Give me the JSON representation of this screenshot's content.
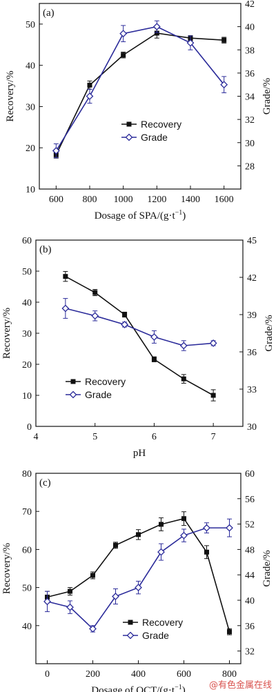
{
  "colors": {
    "recovery": "#111111",
    "grade": "#2b2b9a"
  },
  "watermark": "@有色金属在线",
  "chart_data": [
    {
      "type": "line",
      "panel_label": "(a)",
      "xlabel_main": "Dosage of SPA/(g·t",
      "xlabel_sup": "−1",
      "xlabel_tail": ")",
      "ylabel": "Recovery/%",
      "y2label": "Grade/%",
      "xlim": [
        500,
        1700
      ],
      "ylim": [
        10,
        55
      ],
      "y2lim": [
        26,
        42
      ],
      "xticks": [
        600,
        800,
        1000,
        1200,
        1400,
        1600
      ],
      "yticks": [
        10,
        20,
        30,
        40,
        50
      ],
      "y2ticks": [
        28,
        30,
        32,
        34,
        36,
        38,
        40,
        42
      ],
      "legend_position": "center-right",
      "legend": [
        "Recovery",
        "Grade"
      ],
      "series": [
        {
          "name": "Recovery",
          "axis": "left",
          "marker": "square",
          "x": [
            600,
            800,
            1000,
            1200,
            1400,
            1600
          ],
          "y": [
            18.3,
            35.2,
            42.5,
            47.8,
            46.6,
            46.1
          ],
          "err": [
            0.8,
            1.0,
            0.7,
            1.2,
            0.6,
            0.7
          ]
        },
        {
          "name": "Grade",
          "axis": "right",
          "marker": "diamond",
          "x": [
            600,
            800,
            1000,
            1200,
            1400,
            1600
          ],
          "y": [
            29.3,
            34.0,
            39.4,
            40.0,
            38.6,
            35.0
          ],
          "err": [
            0.6,
            0.6,
            0.7,
            0.5,
            0.6,
            0.7
          ]
        }
      ]
    },
    {
      "type": "line",
      "panel_label": "(b)",
      "xlabel_main": "pH",
      "xlabel_sup": "",
      "xlabel_tail": "",
      "ylabel": "Recovery/%",
      "y2label": "Grade/%",
      "xlim": [
        4,
        7.5
      ],
      "ylim": [
        0,
        60
      ],
      "y2lim": [
        30,
        45
      ],
      "xticks": [
        4,
        5,
        6,
        7
      ],
      "yticks": [
        0,
        10,
        20,
        30,
        40,
        50,
        60
      ],
      "y2ticks": [
        30,
        33,
        36,
        39,
        42,
        45
      ],
      "legend_position": "lower-left",
      "legend": [
        "Recovery",
        "Grade"
      ],
      "series": [
        {
          "name": "Recovery",
          "axis": "left",
          "marker": "square",
          "x": [
            4.5,
            5,
            5.5,
            6,
            6.5,
            7
          ],
          "y": [
            48.3,
            43.1,
            36.0,
            21.6,
            15.3,
            10.0
          ],
          "err": [
            1.6,
            1.0,
            0.8,
            0.8,
            1.4,
            1.8
          ]
        },
        {
          "name": "Grade",
          "axis": "right",
          "marker": "diamond",
          "x": [
            4.5,
            5,
            5.5,
            6,
            6.5,
            7
          ],
          "y": [
            39.5,
            38.9,
            38.2,
            37.2,
            36.5,
            36.7
          ],
          "err": [
            0.8,
            0.4,
            0.2,
            0.5,
            0.4,
            0.2
          ]
        }
      ]
    },
    {
      "type": "line",
      "panel_label": "(c)",
      "xlabel_main": "Dosage of OCT/(g·t",
      "xlabel_sup": "−1",
      "xlabel_tail": ")",
      "ylabel": "Recovery/%",
      "y2label": "Grade/%",
      "xlim": [
        -50,
        850
      ],
      "ylim": [
        30,
        80
      ],
      "y2lim": [
        30,
        60
      ],
      "xticks": [
        0,
        200,
        400,
        600,
        800
      ],
      "yticks": [
        40,
        50,
        60,
        70,
        80
      ],
      "y2ticks": [
        32,
        36,
        40,
        44,
        48,
        52,
        56,
        60
      ],
      "legend_position": "lower-center",
      "legend": [
        "Recovery",
        "Grade"
      ],
      "series": [
        {
          "name": "Recovery",
          "axis": "left",
          "marker": "square",
          "x": [
            0,
            100,
            200,
            300,
            400,
            500,
            600,
            700,
            800
          ],
          "y": [
            47.5,
            49.0,
            53.2,
            61.1,
            63.9,
            66.6,
            68.1,
            59.3,
            38.4
          ],
          "err": [
            1.5,
            1.0,
            0.9,
            0.8,
            1.3,
            1.7,
            1.8,
            1.7,
            0.8
          ]
        },
        {
          "name": "Grade",
          "axis": "right",
          "marker": "diamond",
          "x": [
            0,
            100,
            200,
            300,
            400,
            500,
            600,
            700,
            800
          ],
          "y": [
            39.8,
            38.9,
            35.5,
            40.6,
            42.0,
            47.6,
            50.2,
            51.4,
            51.4
          ],
          "err": [
            1.6,
            1.0,
            0.5,
            1.2,
            1.0,
            1.3,
            1.0,
            0.8,
            1.4
          ]
        }
      ]
    }
  ]
}
